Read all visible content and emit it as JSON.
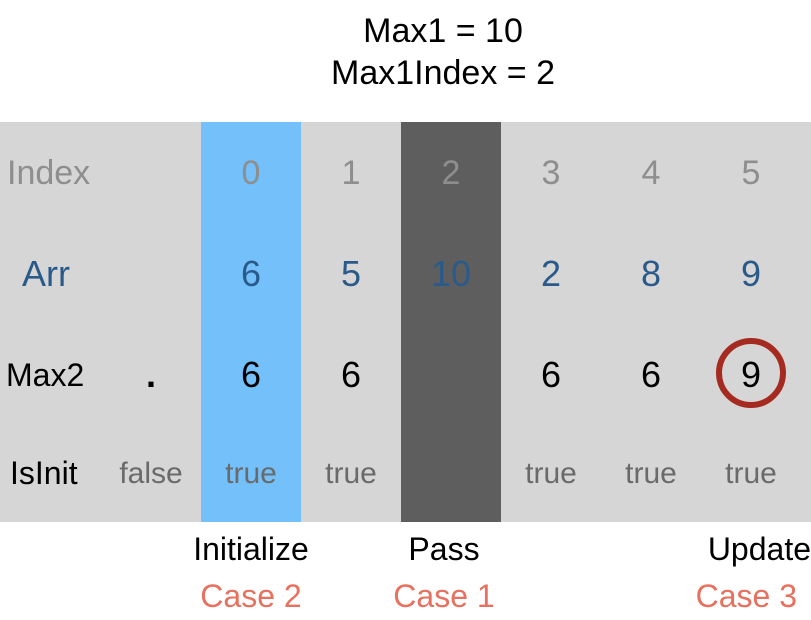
{
  "header": {
    "line1": "Max1 = 10",
    "line2": "Max1Index = 2"
  },
  "rows": {
    "index": {
      "label": "Index",
      "values": [
        "0",
        "1",
        "2",
        "3",
        "4",
        "5"
      ]
    },
    "arr": {
      "label": "Arr",
      "values": [
        "6",
        "5",
        "10",
        "2",
        "8",
        "9"
      ]
    },
    "max2": {
      "label": "Max2",
      "initial": ".",
      "values": [
        "6",
        "6",
        "",
        "6",
        "6",
        "9"
      ]
    },
    "isinit": {
      "label": "IsInit",
      "initial": "false",
      "values": [
        "true",
        "true",
        "",
        "true",
        "true",
        "true"
      ]
    }
  },
  "annotations": [
    {
      "action": "Initialize",
      "case": "Case 2"
    },
    {
      "action": "Pass",
      "case": "Case 1"
    },
    {
      "action": "Update",
      "case": "Case 3"
    }
  ],
  "colors": {
    "table": "#d6d6d6",
    "initialize_column": "#73c0fa",
    "pass_column": "#5e5e5e",
    "arr_text": "#2a5a8a",
    "ring": "#a52a1f",
    "case_text": "#e8705e"
  }
}
